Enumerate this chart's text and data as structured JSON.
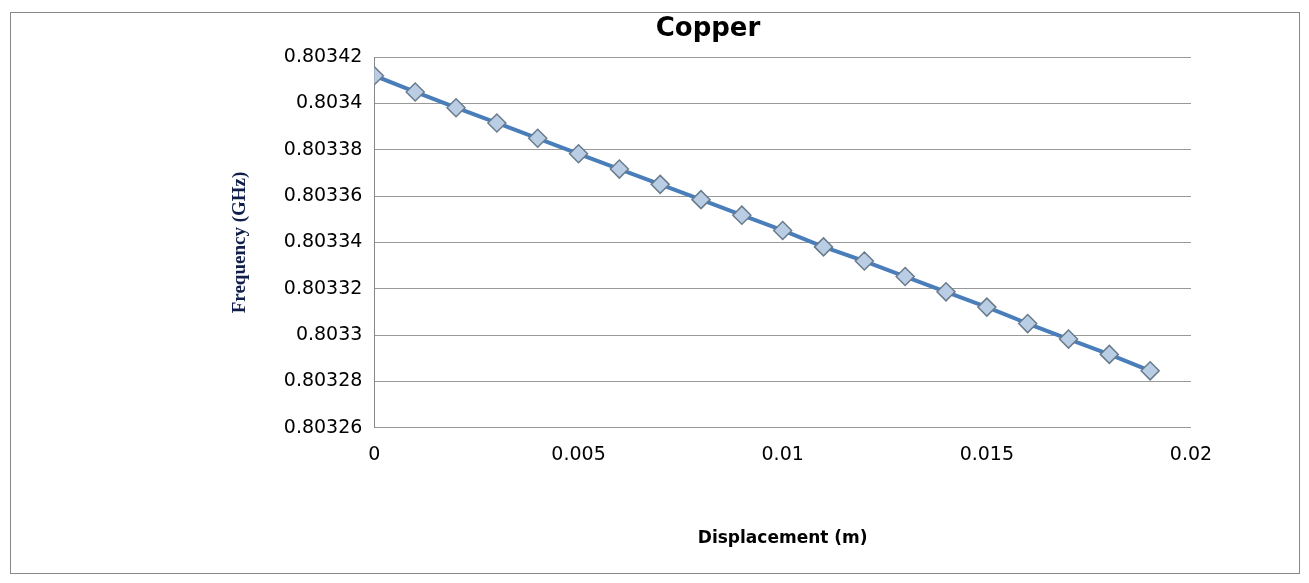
{
  "chart_data": {
    "type": "scatter",
    "title": "Copper",
    "xlabel": "Displacement (m)",
    "ylabel": "Frequency (GHz)",
    "x": [
      0,
      0.001,
      0.002,
      0.003,
      0.004,
      0.005,
      0.006,
      0.007,
      0.008,
      0.009,
      0.01,
      0.011,
      0.012,
      0.013,
      0.014,
      0.015,
      0.016,
      0.017,
      0.018,
      0.019
    ],
    "series": [
      {
        "type": "line",
        "color": "#4a7ebb",
        "values": [
          0.803412,
          0.803405,
          0.8033982,
          0.8033916,
          0.803385,
          0.8033783,
          0.8033717,
          0.8033651,
          0.8033585,
          0.8033518,
          0.8033452,
          0.8033381,
          0.803332,
          0.8033253,
          0.8033187,
          0.8033121,
          0.803305,
          0.8032983,
          0.8032917,
          0.8032846
        ]
      }
    ],
    "xlim": [
      0,
      0.02
    ],
    "xticks": [
      0,
      0.005,
      0.01,
      0.015,
      0.02
    ],
    "ylim": [
      0.80326,
      0.80342
    ],
    "yticks": [
      0.80326,
      0.80328,
      0.8033,
      0.80332,
      0.80334,
      0.80336,
      0.80338,
      0.8034,
      0.80342
    ],
    "grid": "y",
    "legend": false,
    "marker": "diamond",
    "line_style": "solid"
  }
}
